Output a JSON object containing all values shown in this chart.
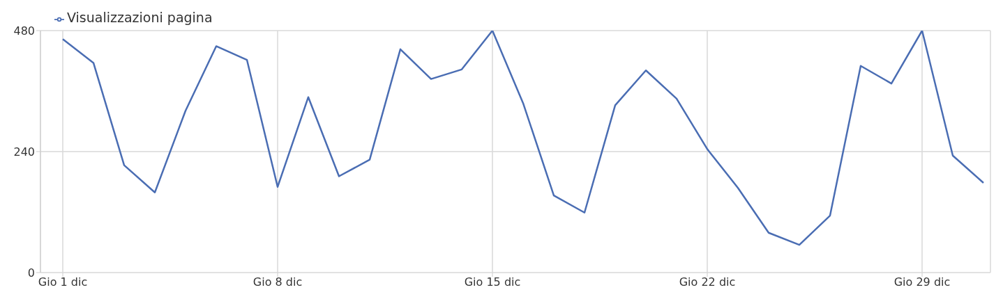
{
  "chart_data": {
    "type": "line",
    "categories": [
      "Gio 1 dic",
      null,
      null,
      null,
      null,
      null,
      null,
      "Gio 8 dic",
      null,
      null,
      null,
      null,
      null,
      null,
      "Gio 15 dic",
      null,
      null,
      null,
      null,
      null,
      null,
      "Gio 22 dic",
      null,
      null,
      null,
      null,
      null,
      null,
      "Gio 29 dic",
      null,
      null
    ],
    "series": [
      {
        "name": "Visualizzazioni pagina",
        "color": "#4a6db3",
        "values": [
          463,
          416,
          213,
          159,
          321,
          449,
          422,
          170,
          348,
          191,
          224,
          443,
          384,
          403,
          480,
          336,
          153,
          119,
          332,
          401,
          345,
          245,
          168,
          79,
          55,
          113,
          410,
          375,
          480,
          232,
          178
        ]
      }
    ],
    "ylim": [
      0,
      480
    ],
    "yticks": [
      0,
      240,
      480
    ],
    "grid": true,
    "legend": "top left",
    "marker": "none",
    "line_style": "solid"
  }
}
